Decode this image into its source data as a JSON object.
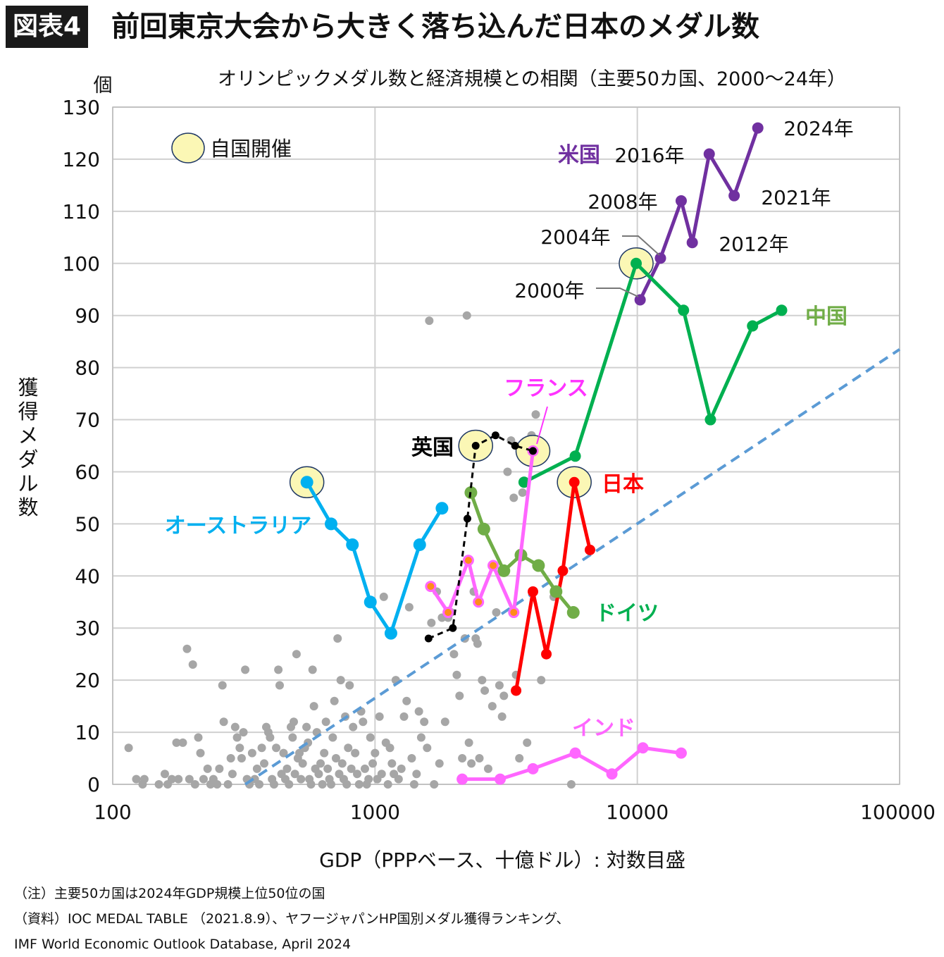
{
  "header": {
    "badge": "図表4",
    "title": "前回東京大会から大きく落ち込んだ日本のメダル数"
  },
  "chart_data": {
    "type": "scatter",
    "title": "オリンピックメダル数と経済規模との相関（主要50カ国、2000～24年）",
    "xlabel": "GDP（PPPベース、十億ドル）: 対数目盛",
    "ylabel": "獲得メダル数",
    "yunit": "個",
    "xscale": "log",
    "xlim": [
      100,
      100000
    ],
    "ylim": [
      0,
      130
    ],
    "xticks": [
      100,
      1000,
      10000,
      100000
    ],
    "yticks": [
      0,
      10,
      20,
      30,
      40,
      50,
      60,
      70,
      80,
      90,
      100,
      110,
      120,
      130
    ],
    "grid": true,
    "legend": {
      "label": "自国開催",
      "placement": "top-left"
    },
    "colors": {
      "grid": "#d0d0d0",
      "background_points": "#a6a6a6",
      "host_fill": "#fbf7b5",
      "trend": "#5b9bd5"
    },
    "trend_line": {
      "style": "dashed",
      "color": "#5b9bd5",
      "points": [
        [
          320,
          0
        ],
        [
          100000,
          83.5
        ]
      ]
    },
    "series": [
      {
        "name": "米国",
        "color": "#7030a0",
        "label_color": "#7030a0",
        "x": [
          10250,
          12250,
          14700,
          16200,
          18800,
          23400,
          28800
        ],
        "y": [
          93,
          101,
          112,
          104,
          121,
          113,
          126
        ]
      },
      {
        "name": "中国",
        "color": "#00b050",
        "label_color": "#70ad47",
        "x": [
          3700,
          5800,
          9900,
          15000,
          19000,
          27500,
          35500
        ],
        "y": [
          58,
          63,
          100,
          91,
          70,
          88,
          91
        ]
      },
      {
        "name": "日本",
        "color": "#ff0000",
        "label_color": "#ff0000",
        "x": [
          3450,
          4000,
          4500,
          5200,
          5750,
          6600
        ],
        "y": [
          18,
          37,
          25,
          41,
          58,
          45
        ]
      },
      {
        "name": "オーストラリア",
        "color": "#00b0f0",
        "label_color": "#00b0f0",
        "x": [
          550,
          680,
          820,
          960,
          1150,
          1480,
          1800
        ],
        "y": [
          58,
          50,
          46,
          35,
          29,
          46,
          53
        ]
      },
      {
        "name": "ドイツ",
        "color": "#70ad47",
        "label_color": "#00b050",
        "x": [
          2320,
          2600,
          3100,
          3600,
          4200,
          4900,
          5700
        ],
        "y": [
          56,
          49,
          41,
          44,
          42,
          37,
          33
        ]
      },
      {
        "name": "フランス",
        "color": "#ff66ff",
        "label_color": "#ff33ff",
        "x": [
          1630,
          1900,
          2270,
          2480,
          2820,
          3380,
          4000
        ],
        "y": [
          38,
          33,
          43,
          35,
          42,
          33,
          64
        ]
      },
      {
        "name": "英国",
        "color": "#000000",
        "label_color": "#000000",
        "x": [
          1600,
          1980,
          2250,
          2420,
          2880,
          3420,
          4000
        ],
        "y": [
          28,
          30,
          51,
          65,
          67,
          65,
          64
        ]
      },
      {
        "name": "インド",
        "color": "#ff66ff",
        "label_color": "#ff66ff",
        "x": [
          2150,
          3000,
          4000,
          5800,
          8000,
          10500,
          14700
        ],
        "y": [
          1,
          1,
          3,
          6,
          2,
          7,
          6
        ]
      }
    ],
    "host_markers": [
      {
        "x": 550,
        "y": 58
      },
      {
        "x": 2420,
        "y": 65
      },
      {
        "x": 4000,
        "y": 64
      },
      {
        "x": 5750,
        "y": 58
      },
      {
        "x": 9900,
        "y": 100
      }
    ],
    "us_year_labels": [
      "2000年",
      "2004年",
      "2008年",
      "2012年",
      "2016年",
      "2021年",
      "2024年"
    ],
    "background_points": [
      [
        115,
        7
      ],
      [
        123,
        1
      ],
      [
        130,
        0
      ],
      [
        132,
        1
      ],
      [
        150,
        0
      ],
      [
        158,
        2
      ],
      [
        162,
        0
      ],
      [
        168,
        1
      ],
      [
        175,
        8
      ],
      [
        178,
        1
      ],
      [
        185,
        8
      ],
      [
        192,
        26
      ],
      [
        196,
        1
      ],
      [
        202,
        23
      ],
      [
        206,
        0
      ],
      [
        212,
        9
      ],
      [
        216,
        6
      ],
      [
        222,
        1
      ],
      [
        230,
        3
      ],
      [
        236,
        0
      ],
      [
        242,
        1
      ],
      [
        250,
        0
      ],
      [
        255,
        3
      ],
      [
        262,
        19
      ],
      [
        265,
        12
      ],
      [
        275,
        0
      ],
      [
        282,
        5
      ],
      [
        286,
        2
      ],
      [
        293,
        11
      ],
      [
        298,
        9
      ],
      [
        305,
        7
      ],
      [
        310,
        5
      ],
      [
        315,
        10
      ],
      [
        320,
        22
      ],
      [
        325,
        1
      ],
      [
        332,
        0
      ],
      [
        340,
        6
      ],
      [
        348,
        1
      ],
      [
        355,
        3
      ],
      [
        362,
        0
      ],
      [
        370,
        7
      ],
      [
        378,
        4
      ],
      [
        385,
        11
      ],
      [
        392,
        10
      ],
      [
        398,
        9
      ],
      [
        405,
        1
      ],
      [
        412,
        0
      ],
      [
        420,
        7
      ],
      [
        428,
        22
      ],
      [
        433,
        19
      ],
      [
        440,
        2
      ],
      [
        448,
        6
      ],
      [
        455,
        1
      ],
      [
        462,
        3
      ],
      [
        470,
        0
      ],
      [
        478,
        11
      ],
      [
        485,
        9
      ],
      [
        490,
        12
      ],
      [
        495,
        2
      ],
      [
        502,
        25
      ],
      [
        508,
        5
      ],
      [
        515,
        6
      ],
      [
        522,
        1
      ],
      [
        530,
        4
      ],
      [
        540,
        7
      ],
      [
        548,
        11
      ],
      [
        555,
        8
      ],
      [
        562,
        1
      ],
      [
        570,
        0
      ],
      [
        578,
        22
      ],
      [
        585,
        15
      ],
      [
        592,
        3
      ],
      [
        600,
        10
      ],
      [
        610,
        2
      ],
      [
        620,
        4
      ],
      [
        630,
        0
      ],
      [
        640,
        6
      ],
      [
        650,
        12
      ],
      [
        660,
        3
      ],
      [
        670,
        1
      ],
      [
        680,
        0
      ],
      [
        690,
        9
      ],
      [
        700,
        16
      ],
      [
        710,
        5
      ],
      [
        720,
        28
      ],
      [
        730,
        2
      ],
      [
        740,
        20
      ],
      [
        750,
        4
      ],
      [
        760,
        1
      ],
      [
        770,
        13
      ],
      [
        780,
        0
      ],
      [
        790,
        7
      ],
      [
        800,
        19
      ],
      [
        812,
        3
      ],
      [
        825,
        11
      ],
      [
        840,
        6
      ],
      [
        855,
        2
      ],
      [
        870,
        0
      ],
      [
        885,
        14
      ],
      [
        900,
        12
      ],
      [
        915,
        3
      ],
      [
        930,
        0
      ],
      [
        945,
        1
      ],
      [
        960,
        9
      ],
      [
        980,
        4
      ],
      [
        1000,
        6
      ],
      [
        1020,
        1
      ],
      [
        1040,
        13
      ],
      [
        1060,
        2
      ],
      [
        1080,
        36
      ],
      [
        1100,
        8
      ],
      [
        1120,
        0
      ],
      [
        1140,
        7
      ],
      [
        1160,
        4
      ],
      [
        1180,
        2
      ],
      [
        1200,
        20
      ],
      [
        1230,
        1
      ],
      [
        1260,
        3
      ],
      [
        1290,
        13
      ],
      [
        1320,
        16
      ],
      [
        1350,
        34
      ],
      [
        1380,
        5
      ],
      [
        1410,
        0
      ],
      [
        1440,
        2
      ],
      [
        1470,
        14
      ],
      [
        1500,
        9
      ],
      [
        1540,
        12
      ],
      [
        1580,
        7
      ],
      [
        1610,
        89
      ],
      [
        1640,
        31
      ],
      [
        1680,
        0
      ],
      [
        1720,
        37
      ],
      [
        1760,
        4
      ],
      [
        1800,
        32
      ],
      [
        1850,
        12
      ],
      [
        1900,
        32
      ],
      [
        1950,
        33
      ],
      [
        2000,
        25
      ],
      [
        2050,
        21
      ],
      [
        2100,
        17
      ],
      [
        2150,
        5
      ],
      [
        2200,
        28
      ],
      [
        2240,
        90
      ],
      [
        2280,
        8
      ],
      [
        2330,
        4
      ],
      [
        2380,
        37
      ],
      [
        2420,
        28
      ],
      [
        2460,
        27
      ],
      [
        2500,
        5
      ],
      [
        2560,
        20
      ],
      [
        2620,
        18
      ],
      [
        2700,
        3
      ],
      [
        2800,
        15
      ],
      [
        2900,
        33
      ],
      [
        2980,
        19
      ],
      [
        3050,
        13
      ],
      [
        3100,
        17
      ],
      [
        3200,
        60
      ],
      [
        3300,
        66
      ],
      [
        3380,
        55
      ],
      [
        3450,
        21
      ],
      [
        3550,
        5
      ],
      [
        3650,
        56
      ],
      [
        3800,
        8
      ],
      [
        3950,
        67
      ],
      [
        4100,
        71
      ],
      [
        4300,
        20
      ],
      [
        4800,
        36
      ],
      [
        5600,
        0
      ]
    ]
  },
  "notes": {
    "line1": "（注）主要50カ国は2024年GDP規模上位50位の国",
    "line2": "（資料）IOC MEDAL TABLE （2021.8.9）、ヤフージャパンHP国別メダル獲得ランキング、",
    "line3": "IMF World Economic Outlook Database, April 2024"
  }
}
